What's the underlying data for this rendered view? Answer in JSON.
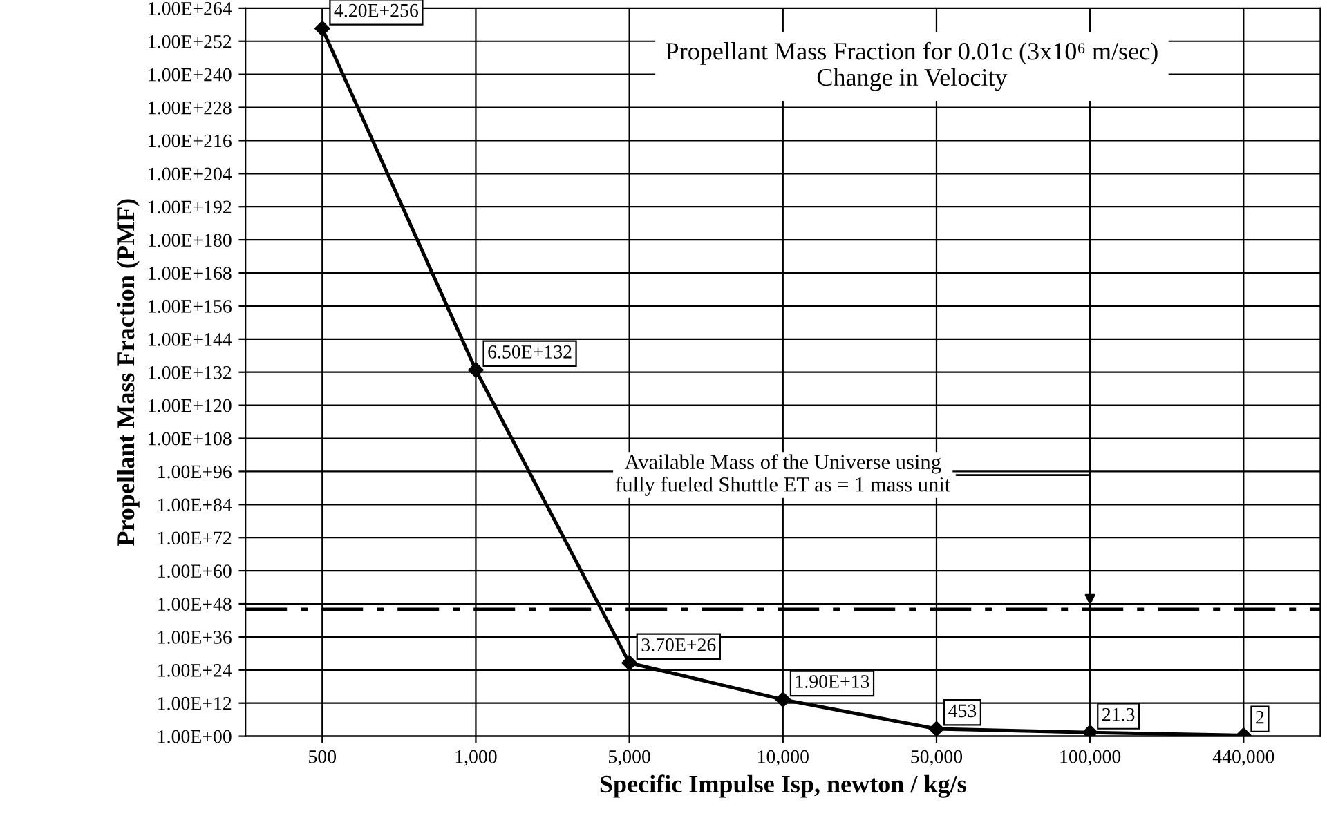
{
  "chart_data": {
    "type": "line",
    "title": "Propellant Mass Fraction for 0.01c (3x10⁶ m/sec)\nChange in Velocity",
    "xlabel": "Specific Impulse Isp, newton / kg/s",
    "ylabel": "Propellant Mass Fraction (PMF)",
    "categories": [
      "500",
      "1,000",
      "5,000",
      "10,000",
      "50,000",
      "100,000",
      "440,000"
    ],
    "series": [
      {
        "color": "#000000",
        "values": [
          4.2e+256,
          6.5e+132,
          3.7e+26,
          19000000000000.0,
          453,
          21.3,
          2
        ],
        "value_labels": [
          "4.20E+256",
          "6.50E+132",
          "3.70E+26",
          "1.90E+13",
          "453",
          "21.3",
          "2"
        ]
      }
    ],
    "log": true,
    "marker": "diamond",
    "line_style": "solid",
    "grid": true,
    "legend": false,
    "ylim": [
      1,
      1e+264
    ],
    "yticks": [
      {
        "value": 1,
        "label": "1.00E+00"
      },
      {
        "value": 1000000000000.0,
        "label": "1.00E+12"
      },
      {
        "value": 1e+24,
        "label": "1.00E+24"
      },
      {
        "value": 1e+36,
        "label": "1.00E+36"
      },
      {
        "value": 1e+48,
        "label": "1.00E+48"
      },
      {
        "value": 1e+60,
        "label": "1.00E+60"
      },
      {
        "value": 1e+72,
        "label": "1.00E+72"
      },
      {
        "value": 1e+84,
        "label": "1.00E+84"
      },
      {
        "value": 1e+96,
        "label": "1.00E+96"
      },
      {
        "value": 1e+108,
        "label": "1.00E+108"
      },
      {
        "value": 1e+120,
        "label": "1.00E+120"
      },
      {
        "value": 1e+132,
        "label": "1.00E+132"
      },
      {
        "value": 1e+144,
        "label": "1.00E+144"
      },
      {
        "value": 1e+156,
        "label": "1.00E+156"
      },
      {
        "value": 1e+168,
        "label": "1.00E+168"
      },
      {
        "value": 1e+180,
        "label": "1.00E+180"
      },
      {
        "value": 1e+192,
        "label": "1.00E+192"
      },
      {
        "value": 1e+204,
        "label": "1.00E+204"
      },
      {
        "value": 1e+216,
        "label": "1.00E+216"
      },
      {
        "value": 1e+228,
        "label": "1.00E+228"
      },
      {
        "value": 1e+240,
        "label": "1.00E+240"
      },
      {
        "value": 1e+252,
        "label": "1.00E+252"
      },
      {
        "value": 1e+264,
        "label": "1.00E+264"
      }
    ],
    "ref_lines": [
      {
        "axis": "y",
        "value": 1e+46,
        "color": "#000000",
        "line_style": "dashed"
      }
    ],
    "annotations": [
      {
        "text": "Available Mass of the Universe using\nfully fueled Shuttle ET as = 1 mass unit",
        "x": "100,000",
        "y": 1e+46
      }
    ]
  }
}
